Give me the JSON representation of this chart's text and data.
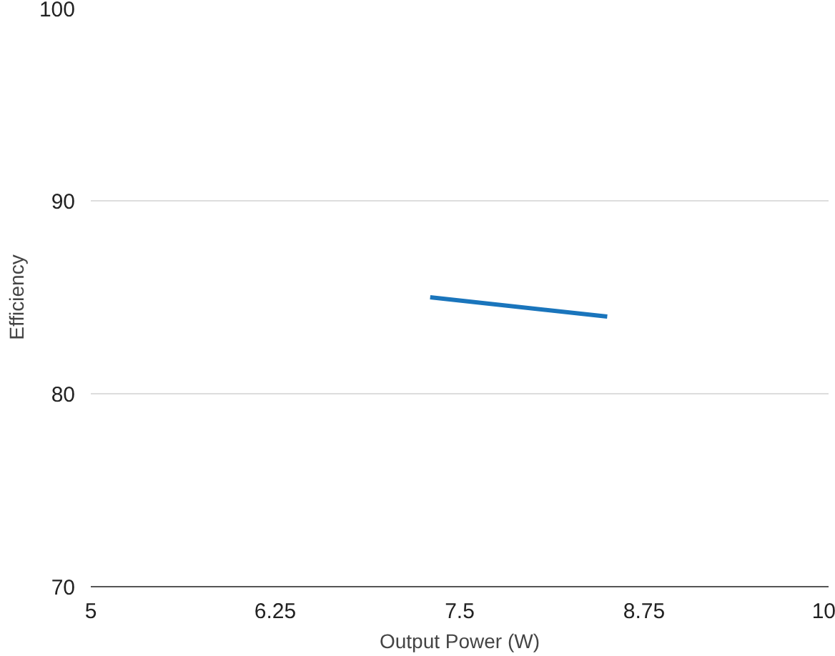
{
  "chart_data": {
    "type": "line",
    "xlabel": "Output Power (W)",
    "ylabel": "Efficiency",
    "x": [
      7.3,
      8.5
    ],
    "series": [
      {
        "color": "#1a75bc",
        "values": [
          85,
          84
        ]
      }
    ],
    "xlim": [
      5,
      10
    ],
    "xticks": [
      5,
      6.25,
      7.5,
      8.75,
      10
    ],
    "ylim": [
      70,
      100
    ],
    "yticks": [
      70,
      80,
      90,
      100
    ],
    "grid": "y"
  }
}
